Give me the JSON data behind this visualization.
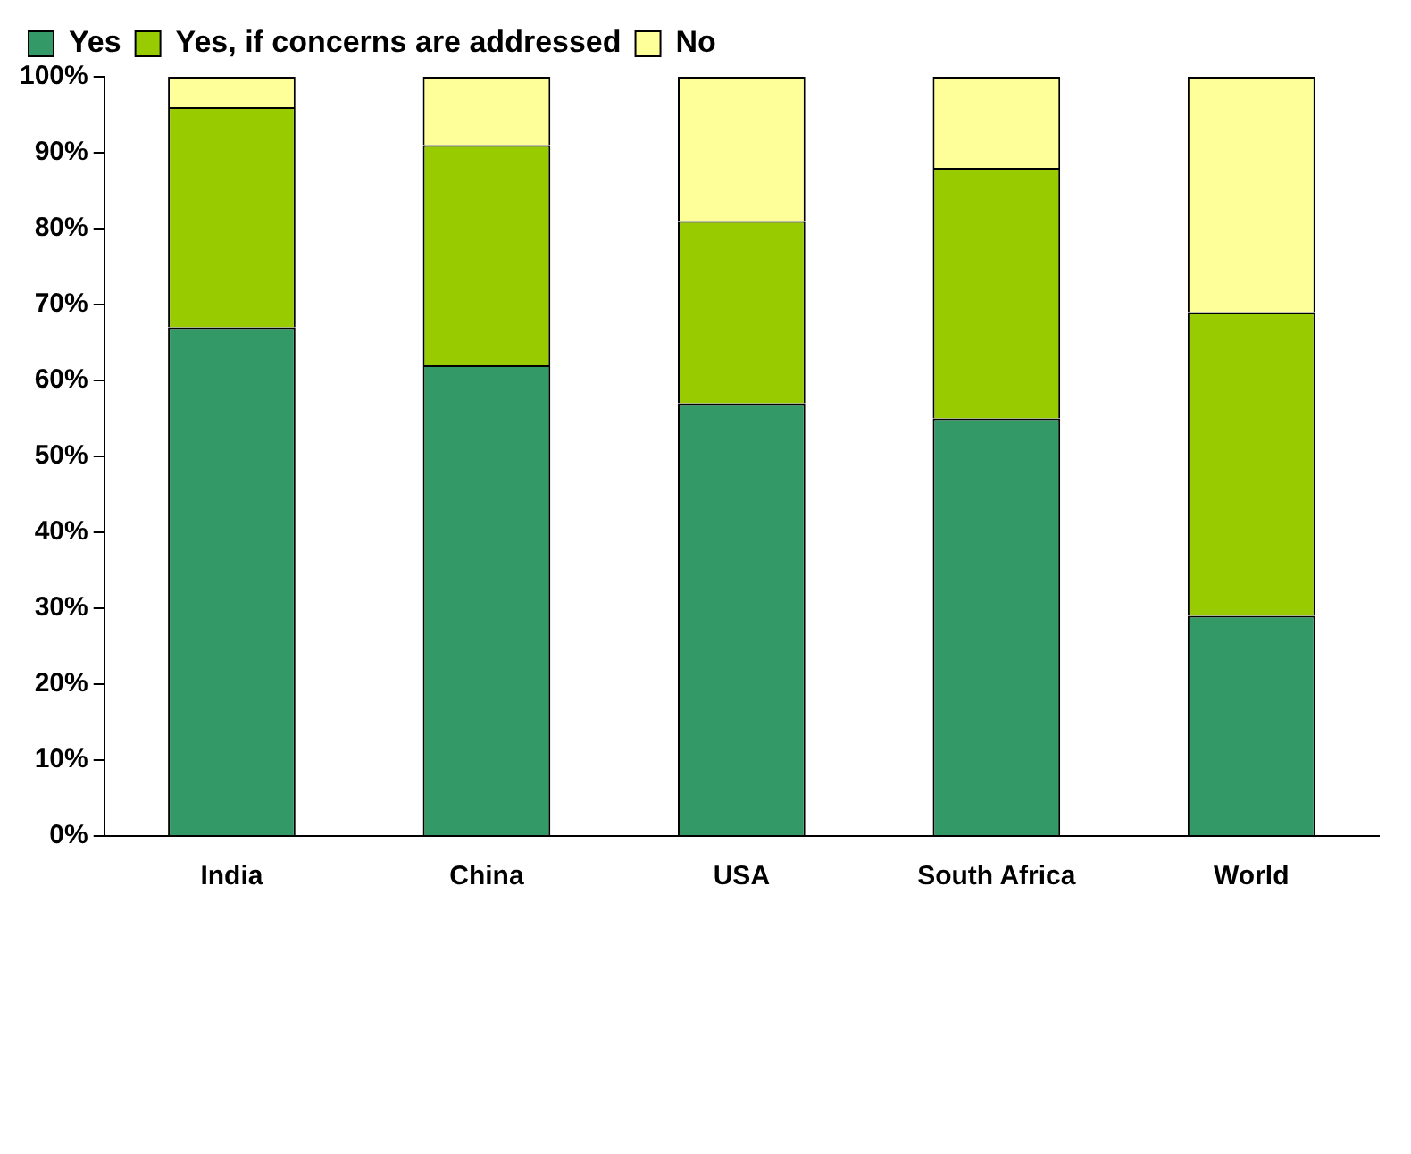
{
  "chart_data": {
    "type": "bar",
    "stacked": true,
    "categories": [
      "India",
      "China",
      "USA",
      "South Africa",
      "World"
    ],
    "series": [
      {
        "name": "Yes",
        "color": "#339966",
        "values": [
          67,
          62,
          57,
          55,
          29
        ]
      },
      {
        "name": "Yes, if concerns are addressed",
        "color": "#99cc00",
        "values": [
          29,
          29,
          24,
          33,
          40
        ]
      },
      {
        "name": "No",
        "color": "#ffff99",
        "values": [
          4,
          9,
          19,
          12,
          31
        ]
      }
    ],
    "ylim": [
      0,
      100
    ],
    "yticks": [
      {
        "value": 0,
        "label": "0%"
      },
      {
        "value": 10,
        "label": "10%"
      },
      {
        "value": 20,
        "label": "20%"
      },
      {
        "value": 30,
        "label": "30%"
      },
      {
        "value": 40,
        "label": "40%"
      },
      {
        "value": 50,
        "label": "50%"
      },
      {
        "value": 60,
        "label": "60%"
      },
      {
        "value": 70,
        "label": "70%"
      },
      {
        "value": 80,
        "label": "80%"
      },
      {
        "value": 90,
        "label": "90%"
      },
      {
        "value": 100,
        "label": "100%"
      }
    ],
    "grid": false,
    "legend": "top left"
  }
}
